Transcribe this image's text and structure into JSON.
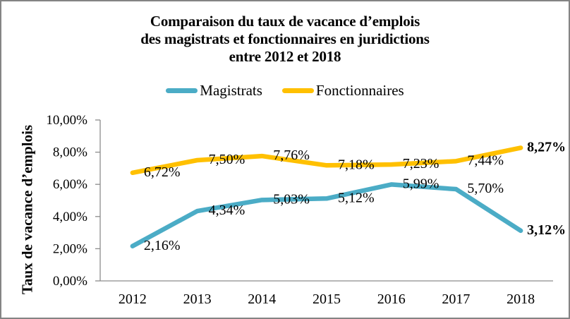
{
  "title": {
    "lines": [
      "Comparaison du taux de vacance d’emplois",
      "des magistrats et fonctionnaires en juridictions",
      "entre 2012 et 2018"
    ]
  },
  "legend": {
    "items": [
      {
        "label": "Magistrats",
        "color": "#4BACC6"
      },
      {
        "label": "Fonctionnaires",
        "color": "#FFC000"
      }
    ]
  },
  "y_axis": {
    "title": "Taux de vacance d’emplois",
    "tick_labels": [
      "0,00%",
      "2,00%",
      "4,00%",
      "6,00%",
      "8,00%",
      "10,00%"
    ],
    "min": 0,
    "max": 10
  },
  "chart_data": {
    "type": "line",
    "title": "Comparaison du taux de vacance d’emplois des magistrats et fonctionnaires en juridictions entre 2012 et 2018",
    "categories": [
      "2012",
      "2013",
      "2014",
      "2015",
      "2016",
      "2017",
      "2018"
    ],
    "series": [
      {
        "name": "Magistrats",
        "color": "#4BACC6",
        "values": [
          2.16,
          4.34,
          5.03,
          5.12,
          5.99,
          5.7,
          3.12
        ],
        "labels": [
          "2,16%",
          "4,34%",
          "5,03%",
          "5,12%",
          "5,99%",
          "5,70%",
          "3,12%"
        ]
      },
      {
        "name": "Fonctionnaires",
        "color": "#FFC000",
        "values": [
          6.72,
          7.5,
          7.76,
          7.18,
          7.23,
          7.44,
          8.27
        ],
        "labels": [
          "6,72%",
          "7,50%",
          "7,76%",
          "7,18%",
          "7,23%",
          "7,44%",
          "8,27%"
        ]
      }
    ],
    "ylabel": "Taux de vacance d’emplois",
    "xlabel": "",
    "ylim": [
      0,
      10
    ],
    "grid": false,
    "legend_position": "top",
    "last_point_labels_bold": true
  },
  "colors": {
    "axis": "#8C8C8C",
    "text": "#000000",
    "border": "#848484",
    "background": "#FFFFFF"
  }
}
